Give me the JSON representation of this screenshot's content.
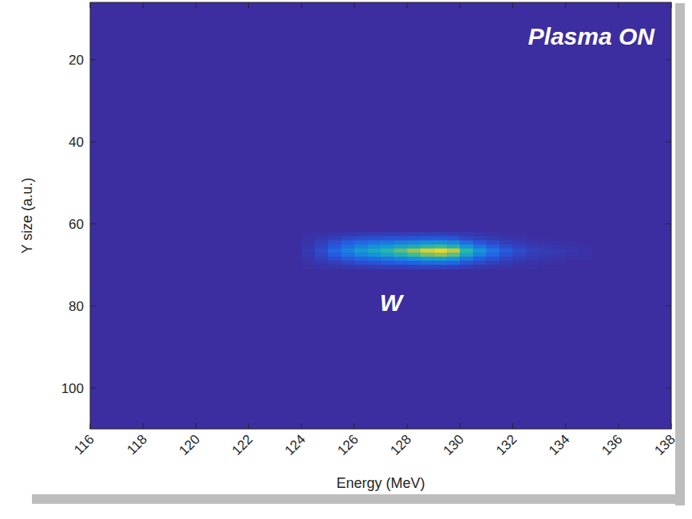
{
  "chart_data": {
    "type": "heatmap",
    "x_label": "Energy (MeV)",
    "y_label": "Y size (a.u.)",
    "annotations": [
      "Plasma ON",
      "W"
    ],
    "xlim": [
      116,
      138
    ],
    "xticks": [
      116,
      118,
      120,
      122,
      124,
      126,
      128,
      130,
      132,
      134,
      136,
      138
    ],
    "ylim": [
      110,
      6
    ],
    "yticks": [
      20,
      40,
      60,
      80,
      100
    ],
    "grid": false,
    "zlim": [
      0,
      1
    ],
    "x_edges": [
      124,
      124.5,
      125,
      125.5,
      126,
      126.5,
      127,
      127.5,
      128,
      128.5,
      129,
      129.5,
      130,
      130.5,
      131,
      131.5,
      132,
      132.5,
      133,
      133.5,
      134,
      134.5,
      135
    ],
    "y_edges": [
      62,
      63,
      64,
      65,
      66,
      67,
      68,
      69,
      70,
      71
    ],
    "cells": [
      [
        0.01,
        0.02,
        0.03,
        0.04,
        0.05,
        0.06,
        0.06,
        0.06,
        0.07,
        0.07,
        0.07,
        0.06,
        0.05,
        0.03,
        0.02,
        0.01,
        0.01,
        0,
        0,
        0,
        0,
        0
      ],
      [
        0.02,
        0.04,
        0.07,
        0.1,
        0.12,
        0.13,
        0.14,
        0.15,
        0.16,
        0.17,
        0.17,
        0.15,
        0.1,
        0.07,
        0.05,
        0.03,
        0.02,
        0.01,
        0.01,
        0,
        0,
        0
      ],
      [
        0.03,
        0.07,
        0.13,
        0.19,
        0.23,
        0.26,
        0.28,
        0.31,
        0.34,
        0.37,
        0.38,
        0.34,
        0.24,
        0.16,
        0.11,
        0.07,
        0.05,
        0.03,
        0.02,
        0.02,
        0.01,
        0
      ],
      [
        0.04,
        0.09,
        0.17,
        0.25,
        0.32,
        0.37,
        0.41,
        0.47,
        0.52,
        0.59,
        0.62,
        0.55,
        0.39,
        0.26,
        0.18,
        0.12,
        0.08,
        0.05,
        0.04,
        0.03,
        0.02,
        0.01
      ],
      [
        0.05,
        0.12,
        0.22,
        0.32,
        0.42,
        0.5,
        0.58,
        0.68,
        0.78,
        0.9,
        0.95,
        0.85,
        0.6,
        0.4,
        0.28,
        0.18,
        0.12,
        0.08,
        0.06,
        0.05,
        0.03,
        0.02
      ],
      [
        0.04,
        0.1,
        0.18,
        0.26,
        0.34,
        0.4,
        0.47,
        0.55,
        0.63,
        0.72,
        0.76,
        0.68,
        0.48,
        0.32,
        0.22,
        0.14,
        0.1,
        0.06,
        0.05,
        0.04,
        0.02,
        0.02
      ],
      [
        0.03,
        0.07,
        0.12,
        0.17,
        0.22,
        0.25,
        0.29,
        0.33,
        0.38,
        0.43,
        0.45,
        0.4,
        0.29,
        0.19,
        0.14,
        0.09,
        0.06,
        0.04,
        0.03,
        0.02,
        0.01,
        0.01
      ],
      [
        0.02,
        0.04,
        0.07,
        0.1,
        0.13,
        0.15,
        0.17,
        0.19,
        0.21,
        0.24,
        0.25,
        0.22,
        0.16,
        0.11,
        0.08,
        0.05,
        0.03,
        0.02,
        0.01,
        0.01,
        0,
        0
      ],
      [
        0.01,
        0.02,
        0.03,
        0.04,
        0.05,
        0.06,
        0.07,
        0.07,
        0.08,
        0.09,
        0.09,
        0.08,
        0.06,
        0.04,
        0.03,
        0.02,
        0.01,
        0.01,
        0,
        0,
        0,
        0
      ]
    ]
  }
}
